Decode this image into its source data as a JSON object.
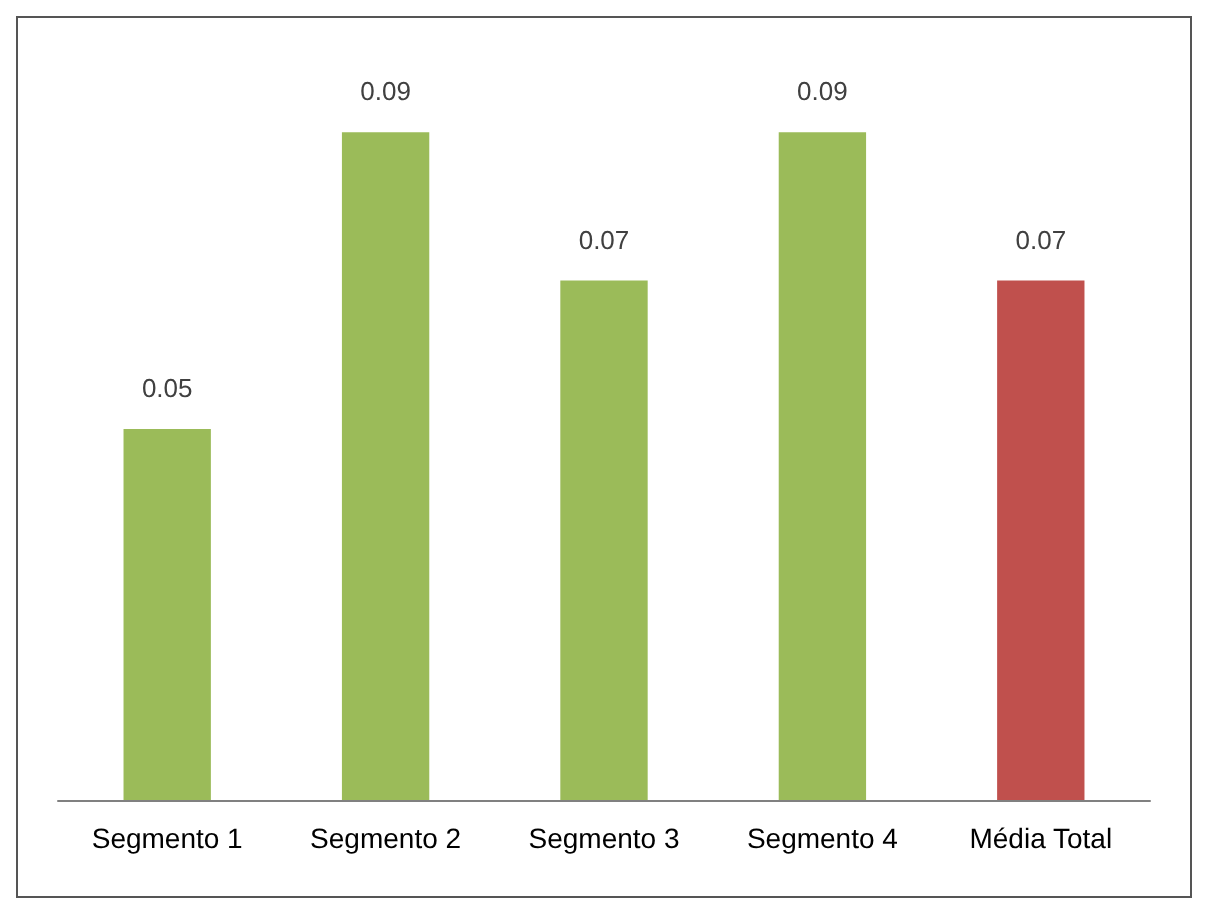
{
  "chart_data": {
    "type": "bar",
    "categories": [
      "Segmento 1",
      "Segmento 2",
      "Segmento 3",
      "Segmento 4",
      "Média Total"
    ],
    "values": [
      0.05,
      0.09,
      0.07,
      0.09,
      0.07
    ],
    "colors": [
      "#9bbb59",
      "#9bbb59",
      "#9bbb59",
      "#9bbb59",
      "#c0504d"
    ],
    "data_labels": true
  }
}
